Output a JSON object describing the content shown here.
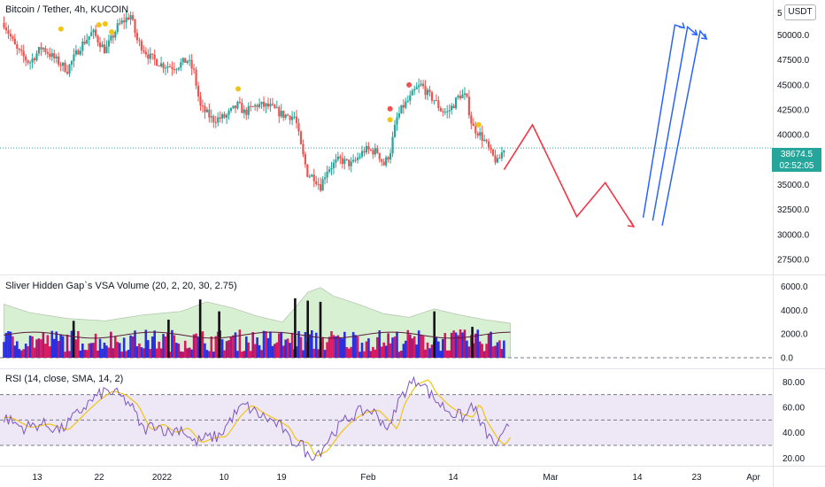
{
  "header": {
    "symbol_title": "Bitcoin / Tether, 4h, KUCOIN",
    "currency_badge": "USDT"
  },
  "last_price": {
    "value": "38674.5",
    "countdown": "02:52:05",
    "color": "#26a69a"
  },
  "colors": {
    "up": "#26a69a",
    "down": "#ef5350",
    "arrow_red": "#f23645",
    "arrow_blue": "#2962ff",
    "vol_blue": "#2a2fe0",
    "vol_red": "#d81b60",
    "vol_magenta": "#b0186e",
    "vol_black": "#111111",
    "vol_band": "#d7f0d2",
    "rsi_line": "#7e57c2",
    "rsi_ma": "#f0c419",
    "rsi_band": "#ede7f6"
  },
  "chart_data": [
    {
      "type": "candlestick",
      "title": "Bitcoin / Tether, 4h, KUCOIN",
      "ylim": [
        26000,
        53500
      ],
      "yticks": [
        "27500.0",
        "30000.0",
        "32500.0",
        "35000.0",
        "37500.0",
        "40000.0",
        "42500.0",
        "45000.0",
        "47500.0",
        "50000.0"
      ],
      "top_partial_tick": "5",
      "x_labels": [
        "13",
        "22",
        "2022",
        "10",
        "19",
        "Feb",
        "14",
        "Mar",
        "14",
        "23",
        "Apr"
      ],
      "price_path_points": [
        {
          "day": 0,
          "price": 51200
        },
        {
          "day": 2,
          "price": 48500
        },
        {
          "day": 4,
          "price": 47200
        },
        {
          "day": 6,
          "price": 48800
        },
        {
          "day": 8,
          "price": 47600
        },
        {
          "day": 10,
          "price": 46500
        },
        {
          "day": 12,
          "price": 48800
        },
        {
          "day": 14,
          "price": 50300
        },
        {
          "day": 16,
          "price": 48400
        },
        {
          "day": 18,
          "price": 50900
        },
        {
          "day": 20,
          "price": 52000
        },
        {
          "day": 21,
          "price": 49500
        },
        {
          "day": 23,
          "price": 47800
        },
        {
          "day": 25,
          "price": 47000
        },
        {
          "day": 27,
          "price": 46800
        },
        {
          "day": 29,
          "price": 47500
        },
        {
          "day": 30,
          "price": 46300
        },
        {
          "day": 31,
          "price": 42800
        },
        {
          "day": 33,
          "price": 41500
        },
        {
          "day": 35,
          "price": 41800
        },
        {
          "day": 37,
          "price": 43000
        },
        {
          "day": 38,
          "price": 42200
        },
        {
          "day": 40,
          "price": 43000
        },
        {
          "day": 42,
          "price": 42800
        },
        {
          "day": 44,
          "price": 42000
        },
        {
          "day": 46,
          "price": 41800
        },
        {
          "day": 47,
          "price": 38500
        },
        {
          "day": 48,
          "price": 36000
        },
        {
          "day": 49,
          "price": 35800
        },
        {
          "day": 50,
          "price": 34800
        },
        {
          "day": 51,
          "price": 36500
        },
        {
          "day": 53,
          "price": 37500
        },
        {
          "day": 55,
          "price": 37000
        },
        {
          "day": 57,
          "price": 38500
        },
        {
          "day": 59,
          "price": 38300
        },
        {
          "day": 60,
          "price": 37000
        },
        {
          "day": 61,
          "price": 38200
        },
        {
          "day": 62,
          "price": 41500
        },
        {
          "day": 63,
          "price": 42800
        },
        {
          "day": 64,
          "price": 43500
        },
        {
          "day": 65,
          "price": 44500
        },
        {
          "day": 66,
          "price": 45000
        },
        {
          "day": 67,
          "price": 44000
        },
        {
          "day": 68,
          "price": 43500
        },
        {
          "day": 69,
          "price": 42500
        },
        {
          "day": 70,
          "price": 42200
        },
        {
          "day": 71,
          "price": 43000
        },
        {
          "day": 72,
          "price": 44000
        },
        {
          "day": 73,
          "price": 43800
        },
        {
          "day": 74,
          "price": 40800
        },
        {
          "day": 75,
          "price": 40200
        },
        {
          "day": 76,
          "price": 39300
        },
        {
          "day": 77,
          "price": 38000
        },
        {
          "day": 78,
          "price": 37200
        },
        {
          "day": 79,
          "price": 38700
        }
      ],
      "markers": [
        {
          "day": 9,
          "price": 50600,
          "color": "#f0c419"
        },
        {
          "day": 15,
          "price": 51000,
          "color": "#f0c419"
        },
        {
          "day": 16,
          "price": 51100,
          "color": "#f0c419"
        },
        {
          "day": 17,
          "price": 50300,
          "color": "#f0c419"
        },
        {
          "day": 37,
          "price": 44600,
          "color": "#f0c419"
        },
        {
          "day": 61,
          "price": 41500,
          "color": "#f0c419"
        },
        {
          "day": 61,
          "price": 42600,
          "color": "#ef5350"
        },
        {
          "day": 64,
          "price": 45000,
          "color": "#ef5350"
        },
        {
          "day": 75,
          "price": 41000,
          "color": "#f0c419"
        }
      ],
      "red_projection": [
        {
          "day": 79,
          "price": 36500
        },
        {
          "day": 83.5,
          "price": 41000
        },
        {
          "day": 90.5,
          "price": 31800
        },
        {
          "day": 95,
          "price": 35200
        },
        {
          "day": 99.5,
          "price": 30800
        }
      ],
      "blue_projections": [
        [
          {
            "day": 101,
            "price": 31700
          },
          {
            "day": 106,
            "price": 51000
          },
          {
            "day": 107.5,
            "price": 50700
          }
        ],
        [
          {
            "day": 102.5,
            "price": 31400
          },
          {
            "day": 108,
            "price": 50800
          },
          {
            "day": 109.5,
            "price": 50000
          }
        ],
        [
          {
            "day": 104,
            "price": 30900
          },
          {
            "day": 110,
            "price": 50400
          },
          {
            "day": 111,
            "price": 49600
          }
        ]
      ]
    },
    {
      "type": "bar",
      "title": "Sliver Hidden Gap`s VSA Volume (20, 2, 20, 30, 2.75)",
      "ylim": [
        0,
        7000
      ],
      "yticks": [
        "0.0",
        "2000.0",
        "4000.0",
        "6000.0"
      ],
      "band_upper_points": [
        {
          "day": 0,
          "value": 4500
        },
        {
          "day": 4,
          "value": 3800
        },
        {
          "day": 10,
          "value": 3300
        },
        {
          "day": 16,
          "value": 3100
        },
        {
          "day": 22,
          "value": 3600
        },
        {
          "day": 28,
          "value": 3900
        },
        {
          "day": 32,
          "value": 4700
        },
        {
          "day": 36,
          "value": 4200
        },
        {
          "day": 40,
          "value": 3500
        },
        {
          "day": 44,
          "value": 3000
        },
        {
          "day": 46,
          "value": 4200
        },
        {
          "day": 48,
          "value": 5500
        },
        {
          "day": 50,
          "value": 5900
        },
        {
          "day": 52,
          "value": 5200
        },
        {
          "day": 56,
          "value": 4500
        },
        {
          "day": 60,
          "value": 3700
        },
        {
          "day": 64,
          "value": 3400
        },
        {
          "day": 68,
          "value": 4100
        },
        {
          "day": 72,
          "value": 3600
        },
        {
          "day": 76,
          "value": 3200
        },
        {
          "day": 80,
          "value": 2900
        }
      ],
      "ma_level": 1900,
      "tall_spikes": [
        {
          "day": 11,
          "value": 3100
        },
        {
          "day": 26,
          "value": 3200
        },
        {
          "day": 31,
          "value": 4900
        },
        {
          "day": 34,
          "value": 3900
        },
        {
          "day": 46,
          "value": 5000
        },
        {
          "day": 48,
          "value": 4800
        },
        {
          "day": 50,
          "value": 4700
        },
        {
          "day": 68,
          "value": 3900
        },
        {
          "day": 74,
          "value": 2600
        }
      ]
    },
    {
      "type": "line",
      "title": "RSI (14, close, SMA, 14, 2)",
      "ylim": [
        14,
        90
      ],
      "yticks": [
        "20.00",
        "40.00",
        "60.00",
        "80.00"
      ],
      "levels": [
        30,
        50,
        70
      ],
      "rsi_points": [
        {
          "day": 0,
          "value": 52
        },
        {
          "day": 3,
          "value": 44
        },
        {
          "day": 6,
          "value": 47
        },
        {
          "day": 9,
          "value": 42
        },
        {
          "day": 12,
          "value": 57
        },
        {
          "day": 14,
          "value": 66
        },
        {
          "day": 16,
          "value": 73
        },
        {
          "day": 18,
          "value": 70
        },
        {
          "day": 20,
          "value": 62
        },
        {
          "day": 22,
          "value": 42
        },
        {
          "day": 24,
          "value": 47
        },
        {
          "day": 26,
          "value": 40
        },
        {
          "day": 28,
          "value": 44
        },
        {
          "day": 30,
          "value": 32
        },
        {
          "day": 32,
          "value": 36
        },
        {
          "day": 34,
          "value": 37
        },
        {
          "day": 36,
          "value": 52
        },
        {
          "day": 38,
          "value": 62
        },
        {
          "day": 40,
          "value": 55
        },
        {
          "day": 42,
          "value": 50
        },
        {
          "day": 44,
          "value": 44
        },
        {
          "day": 45,
          "value": 34
        },
        {
          "day": 47,
          "value": 32
        },
        {
          "day": 48,
          "value": 21
        },
        {
          "day": 50,
          "value": 26
        },
        {
          "day": 52,
          "value": 40
        },
        {
          "day": 54,
          "value": 50
        },
        {
          "day": 56,
          "value": 56
        },
        {
          "day": 58,
          "value": 58
        },
        {
          "day": 60,
          "value": 48
        },
        {
          "day": 61,
          "value": 42
        },
        {
          "day": 62,
          "value": 62
        },
        {
          "day": 63,
          "value": 70
        },
        {
          "day": 64,
          "value": 78
        },
        {
          "day": 65,
          "value": 80
        },
        {
          "day": 66,
          "value": 82
        },
        {
          "day": 67,
          "value": 72
        },
        {
          "day": 69,
          "value": 62
        },
        {
          "day": 71,
          "value": 55
        },
        {
          "day": 73,
          "value": 52
        },
        {
          "day": 74,
          "value": 64
        },
        {
          "day": 75,
          "value": 50
        },
        {
          "day": 76,
          "value": 42
        },
        {
          "day": 77,
          "value": 34
        },
        {
          "day": 78,
          "value": 30
        },
        {
          "day": 79,
          "value": 38
        },
        {
          "day": 80,
          "value": 49
        }
      ]
    }
  ]
}
